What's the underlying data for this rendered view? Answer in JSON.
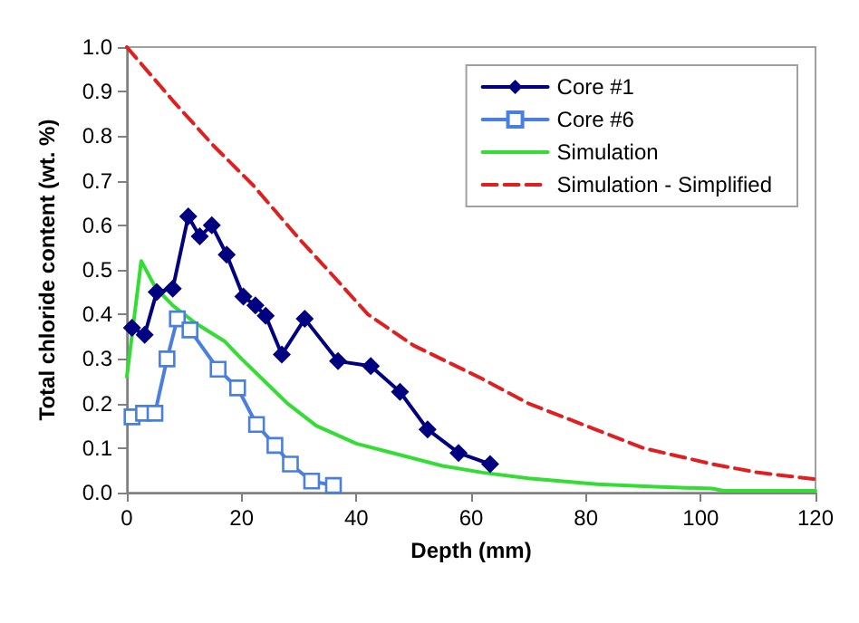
{
  "chart_data": {
    "type": "line",
    "xlabel": "Depth (mm)",
    "ylabel": "Total chloride content (wt. %)",
    "xlim": [
      0,
      120
    ],
    "xticks": [
      0,
      20,
      40,
      60,
      80,
      100,
      120
    ],
    "ylim": [
      0,
      1
    ],
    "yticks": [
      {
        "value": 0,
        "label": "0.0"
      },
      {
        "value": 0.1,
        "label": "0.1"
      },
      {
        "value": 0.2,
        "label": "0.2"
      },
      {
        "value": 0.3,
        "label": "0.3"
      },
      {
        "value": 0.4,
        "label": "0.4"
      },
      {
        "value": 0.5,
        "label": "0.5"
      },
      {
        "value": 0.6,
        "label": "0.6"
      },
      {
        "value": 0.7,
        "label": "0.7"
      },
      {
        "value": 0.8,
        "label": "0.8"
      },
      {
        "value": 0.9,
        "label": "0.9"
      },
      {
        "value": 1,
        "label": "1.0"
      }
    ],
    "grid": false,
    "legend": "top right",
    "series": [
      {
        "name": "Core #1",
        "color": "#000080",
        "marker": "diamond",
        "line_style": "solid",
        "x": [
          0.9,
          3.1,
          5.2,
          8,
          10.7,
          12.7,
          14.8,
          17.4,
          20.3,
          22.4,
          24.2,
          27,
          31,
          36.8,
          42.5,
          47.6,
          52.4,
          57.8,
          63.3
        ],
        "values": [
          0.37,
          0.354,
          0.45,
          0.458,
          0.62,
          0.575,
          0.6,
          0.534,
          0.44,
          0.42,
          0.397,
          0.31,
          0.39,
          0.295,
          0.284,
          0.226,
          0.142,
          0.089,
          0.064
        ]
      },
      {
        "name": "Core #6",
        "color": "#4a7fe0",
        "marker": "square",
        "line_style": "solid",
        "x": [
          0.9,
          2.9,
          4.9,
          7,
          8.8,
          11,
          15.9,
          19.3,
          22.6,
          25.8,
          28.5,
          32.2,
          36
        ],
        "values": [
          0.17,
          0.178,
          0.178,
          0.3,
          0.39,
          0.365,
          0.277,
          0.235,
          0.153,
          0.106,
          0.064,
          0.026,
          0.016
        ]
      },
      {
        "name": "Simulation",
        "color": "#33dd33",
        "marker": "none",
        "line_style": "solid",
        "x": [
          0,
          2.5,
          5,
          8,
          12,
          17,
          20,
          24,
          28,
          33,
          40,
          46,
          55,
          62,
          70,
          82,
          92,
          102,
          104,
          120
        ],
        "values": [
          0.26,
          0.52,
          0.46,
          0.42,
          0.38,
          0.34,
          0.3,
          0.25,
          0.2,
          0.15,
          0.11,
          0.09,
          0.06,
          0.045,
          0.032,
          0.019,
          0.013,
          0.009,
          0.004,
          0.004
        ]
      },
      {
        "name": "Simulation - Simplified",
        "color": "#e02020",
        "marker": "none",
        "line_style": "dashed",
        "x": [
          0,
          8,
          15,
          22,
          26,
          30,
          35,
          42,
          50,
          62,
          70,
          82,
          90,
          102,
          110,
          120
        ],
        "values": [
          1,
          0.88,
          0.78,
          0.69,
          0.63,
          0.57,
          0.5,
          0.4,
          0.33,
          0.255,
          0.2,
          0.14,
          0.1,
          0.064,
          0.045,
          0.03
        ]
      }
    ]
  }
}
